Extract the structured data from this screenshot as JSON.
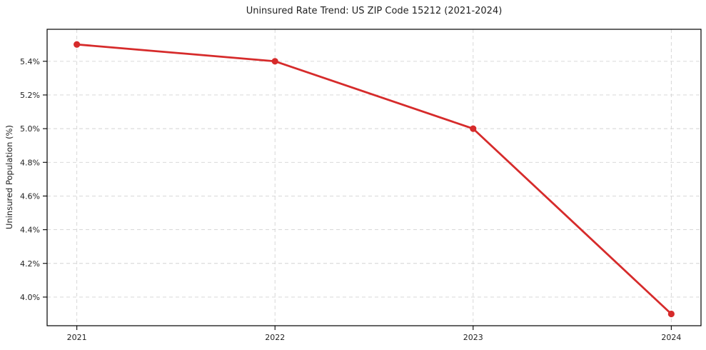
{
  "chart_data": {
    "type": "line",
    "title": "Uninsured Rate Trend: US ZIP Code 15212 (2021-2024)",
    "xlabel": "",
    "ylabel": "Uninsured Population (%)",
    "x": [
      2021,
      2022,
      2023,
      2024
    ],
    "x_tick_labels": [
      "2021",
      "2022",
      "2023",
      "2024"
    ],
    "series": [
      {
        "name": "Uninsured rate",
        "values": [
          5.5,
          5.4,
          5.0,
          3.9
        ]
      }
    ],
    "y_ticks": [
      4.0,
      4.2,
      4.4,
      4.6,
      4.8,
      5.0,
      5.2,
      5.4
    ],
    "y_tick_labels": [
      "4.0%",
      "4.2%",
      "4.4%",
      "4.6%",
      "4.8%",
      "5.0%",
      "5.2%",
      "5.4%"
    ],
    "xlim": [
      2020.85,
      2024.15
    ],
    "ylim": [
      3.83,
      5.59
    ],
    "grid": true,
    "grid_style": "dashed",
    "legend_position": "none",
    "colors": {
      "line": "#d62b2b",
      "marker": "#d62b2b",
      "grid": "#d3d3d3",
      "axis": "#000000",
      "text": "#1f1f1f",
      "background": "#ffffff"
    }
  }
}
